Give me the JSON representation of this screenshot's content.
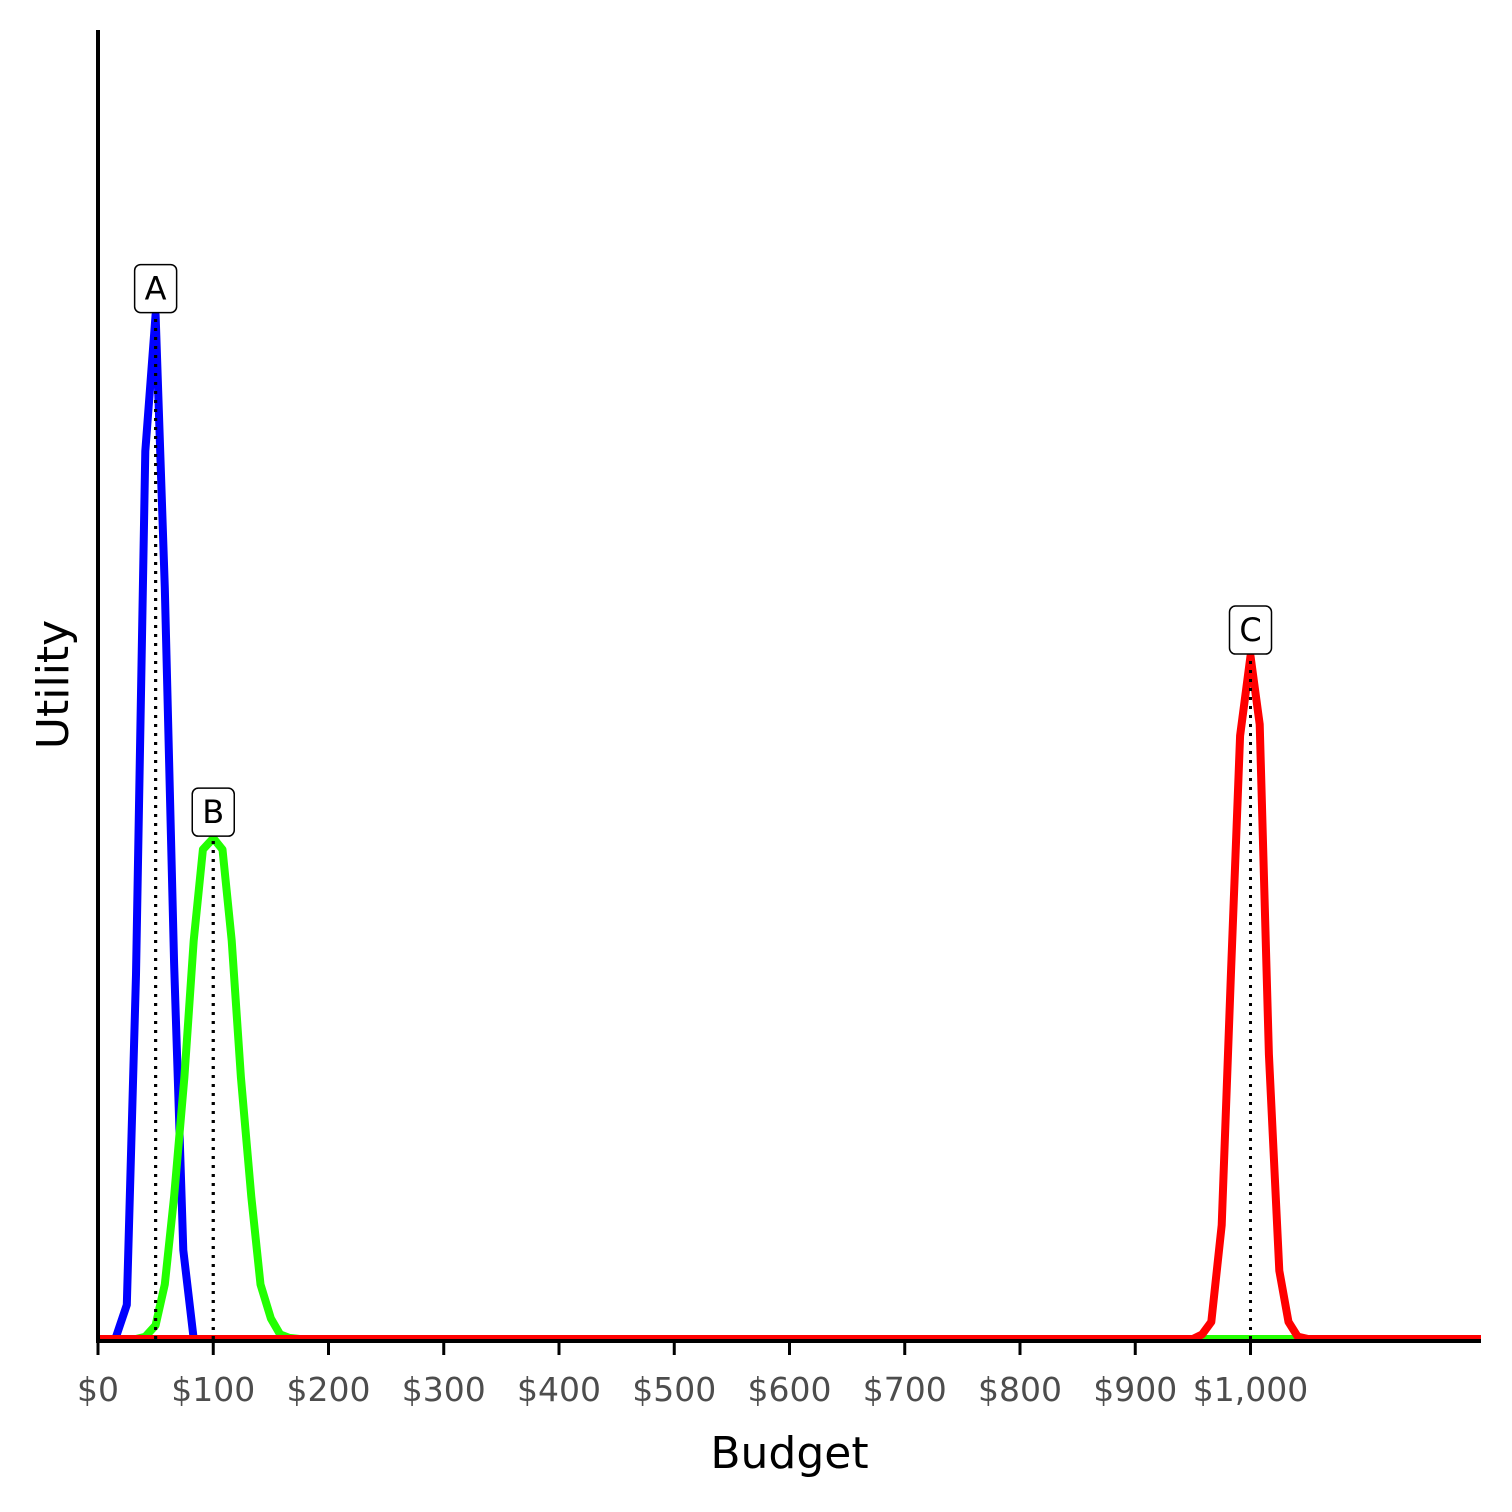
{
  "chart_data": {
    "type": "line",
    "xlabel": "Budget",
    "ylabel": "Utility",
    "xlim": [
      0,
      1200
    ],
    "ylim": [
      0,
      1.15
    ],
    "x_ticks": [
      0,
      100,
      200,
      300,
      400,
      500,
      600,
      700,
      800,
      900,
      1000
    ],
    "x_tick_labels": [
      "$0",
      "$100",
      "$200",
      "$300",
      "$400",
      "$500",
      "$600",
      "$700",
      "$800",
      "$900",
      "$1,000"
    ],
    "grid": false,
    "legend": "none",
    "series": [
      {
        "color": "#0000ff",
        "x": [
          0,
          15,
          25,
          33,
          41,
          50,
          58,
          66,
          74,
          83,
          91,
          100,
          1200
        ],
        "y": [
          0,
          0,
          0.03,
          0.32,
          0.78,
          0.9,
          0.66,
          0.33,
          0.078,
          0.0,
          0.0,
          0.0,
          0.0
        ]
      },
      {
        "color": "#22ff00",
        "x": [
          0,
          25,
          33,
          41,
          50,
          58,
          66,
          75,
          83,
          91,
          100,
          108,
          116,
          124,
          133,
          141,
          150,
          158,
          166,
          175,
          183,
          1200
        ],
        "y": [
          0,
          0,
          0.0,
          0.002,
          0.012,
          0.048,
          0.125,
          0.23,
          0.35,
          0.43,
          0.44,
          0.43,
          0.35,
          0.23,
          0.125,
          0.048,
          0.018,
          0.004,
          0.001,
          0.0,
          0.0,
          0.0
        ]
      },
      {
        "color": "#ff0000",
        "x": [
          0,
          950,
          958,
          966,
          975,
          983,
          991,
          1000,
          1008,
          1016,
          1025,
          1033,
          1041,
          1050,
          1060,
          1200
        ],
        "y": [
          0,
          0,
          0.004,
          0.015,
          0.1,
          0.32,
          0.53,
          0.6,
          0.54,
          0.25,
          0.06,
          0.015,
          0.002,
          0.0,
          0.0,
          0.0
        ]
      }
    ],
    "peak_markers": [
      {
        "label": "A",
        "x": 50,
        "y": 0.9
      },
      {
        "label": "B",
        "x": 100,
        "y": 0.44
      },
      {
        "label": "C",
        "x": 1000,
        "y": 0.6
      }
    ]
  }
}
